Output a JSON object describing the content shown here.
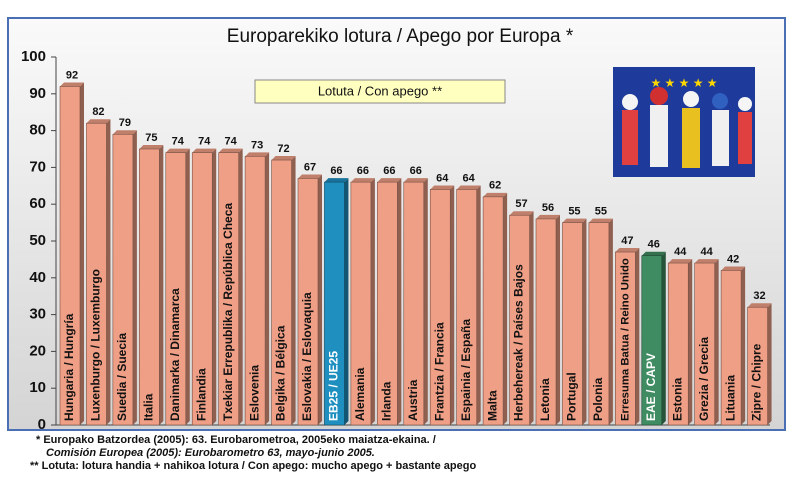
{
  "chart_data": {
    "type": "bar",
    "title": "Europarekiko lotura / Apego por Europa *",
    "legend_label": "Lotuta / Con apego **",
    "categories": [
      "Hungaria / Hungría",
      "Luxenburgo / Luxemburgo",
      "Suedia / Suecia",
      "Italia",
      "Danimarka / Dinamarca",
      "Finlandia",
      "Txekiar Errepublika / República Checa",
      "Eslovenia",
      "Belgika / Bélgica",
      "Eslovakia / Eslovaquia",
      "EB25 / UE25",
      "Alemania",
      "Irlanda",
      "Austria",
      "Frantzia / Francia",
      "Espainia / España",
      "Malta",
      "Herbehereak / Países Bajos",
      "Letonia",
      "Portugal",
      "Polonia",
      "Erresuma Batua / Reino Unido",
      "EAE / CAPV",
      "Estonia",
      "Grezia / Grecia",
      "Lituania",
      "Zipre / Chipre"
    ],
    "values": [
      92,
      82,
      79,
      75,
      74,
      74,
      74,
      73,
      72,
      67,
      66,
      66,
      66,
      66,
      64,
      64,
      62,
      57,
      56,
      55,
      55,
      47,
      46,
      44,
      44,
      42,
      32
    ],
    "colors": [
      "#ef9f86",
      "#ef9f86",
      "#ef9f86",
      "#ef9f86",
      "#ef9f86",
      "#ef9f86",
      "#ef9f86",
      "#ef9f86",
      "#ef9f86",
      "#ef9f86",
      "#1f8fc0",
      "#ef9f86",
      "#ef9f86",
      "#ef9f86",
      "#ef9f86",
      "#ef9f86",
      "#ef9f86",
      "#ef9f86",
      "#ef9f86",
      "#ef9f86",
      "#ef9f86",
      "#ef9f86",
      "#3f8c62",
      "#ef9f86",
      "#ef9f86",
      "#ef9f86",
      "#ef9f86"
    ],
    "ylim": [
      0,
      100
    ],
    "yticks": [
      0,
      10,
      20,
      30,
      40,
      50,
      60,
      70,
      80,
      90,
      100
    ],
    "notes": [
      "* Europako Batzordea (2005): 63. Eurobarometroa, 2005eko maiatza-ekaina. /",
      "Comisión Europea (2005): Eurobarometro 63, mayo-junio  2005.",
      "** Lotuta: lotura handia + nahikoa lotura / Con apego: mucho apego + bastante apego"
    ]
  }
}
